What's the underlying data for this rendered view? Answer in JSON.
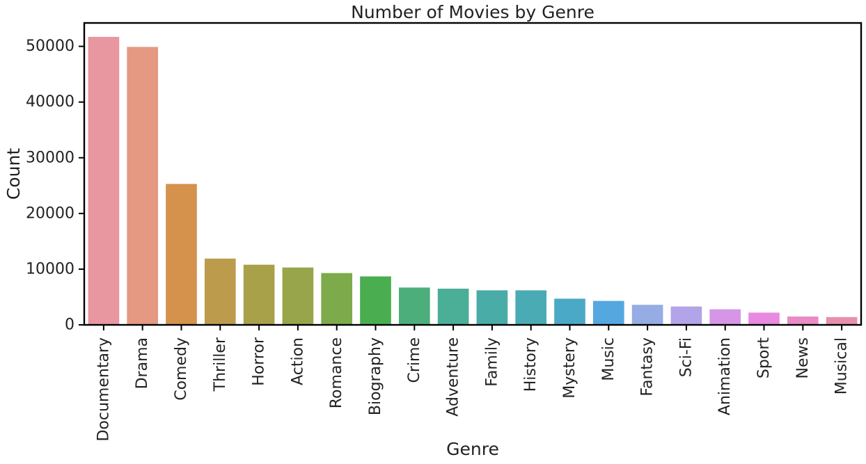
{
  "chart_data": {
    "type": "bar",
    "title": "Number of Movies by Genre",
    "xlabel": "Genre",
    "ylabel": "Count",
    "categories": [
      "Documentary",
      "Drama",
      "Comedy",
      "Thriller",
      "Horror",
      "Action",
      "Romance",
      "Biography",
      "Crime",
      "Adventure",
      "Family",
      "History",
      "Mystery",
      "Music",
      "Fantasy",
      "Sci-Fi",
      "Animation",
      "Sport",
      "News",
      "Musical"
    ],
    "values": [
      51700,
      49900,
      25300,
      11900,
      10800,
      10300,
      9300,
      8700,
      6700,
      6500,
      6200,
      6200,
      4700,
      4300,
      3600,
      3300,
      2800,
      2200,
      1500,
      1400
    ],
    "ylim": [
      0,
      54200
    ],
    "yticks": [
      0,
      10000,
      20000,
      30000,
      40000,
      50000
    ],
    "grid": false,
    "colors": [
      "#e8969f",
      "#e59882",
      "#d5924d",
      "#bc9b4d",
      "#a9a04a",
      "#98a54a",
      "#7daa4a",
      "#4aae50",
      "#4caf7b",
      "#4bae97",
      "#4aaca6",
      "#4aabb4",
      "#4aa9c6",
      "#55a7e0",
      "#96ace4",
      "#b3a3e8",
      "#d596e6",
      "#e88ae0",
      "#e88bc6",
      "#e78fae"
    ]
  }
}
